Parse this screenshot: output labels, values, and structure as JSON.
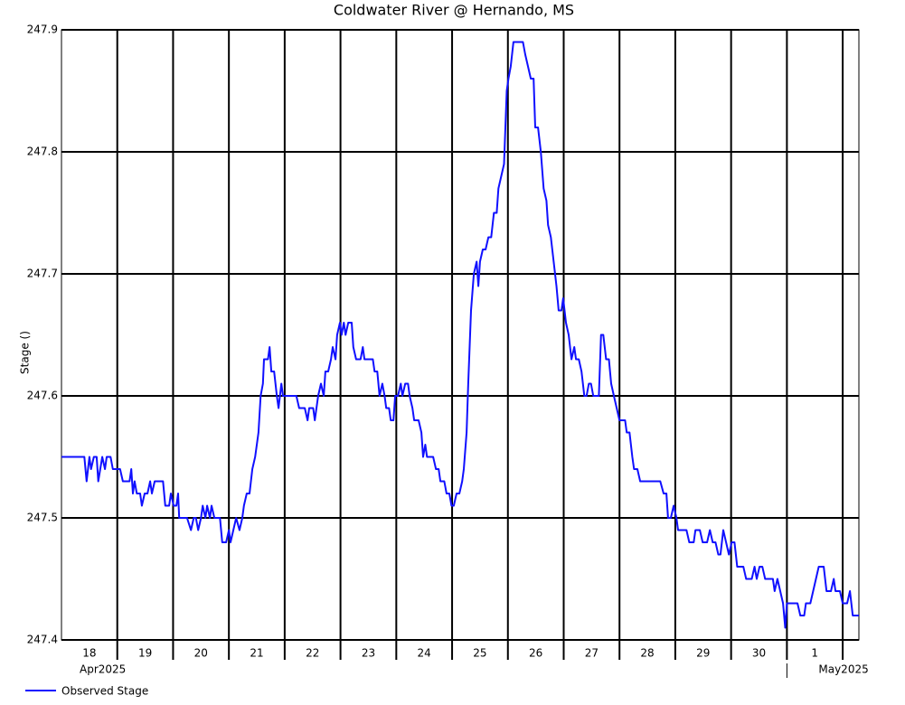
{
  "chart_data": {
    "type": "line",
    "title": "Coldwater River @ Hernando, MS",
    "ylabel": "Stage ()",
    "xlim": [
      0,
      14.29
    ],
    "ylim": [
      247.4,
      247.9
    ],
    "yticks": [
      247.4,
      247.5,
      247.6,
      247.7,
      247.8,
      247.9
    ],
    "xgrid": [
      1,
      2,
      3,
      4,
      5,
      6,
      7,
      8,
      9,
      10,
      11,
      12,
      13,
      14
    ],
    "xticks": [
      {
        "value": 0.5,
        "label": "18"
      },
      {
        "value": 1.5,
        "label": "19"
      },
      {
        "value": 2.5,
        "label": "20"
      },
      {
        "value": 3.5,
        "label": "21"
      },
      {
        "value": 4.5,
        "label": "22"
      },
      {
        "value": 5.5,
        "label": "23"
      },
      {
        "value": 6.5,
        "label": "24"
      },
      {
        "value": 7.5,
        "label": "25"
      },
      {
        "value": 8.5,
        "label": "26"
      },
      {
        "value": 9.5,
        "label": "27"
      },
      {
        "value": 10.5,
        "label": "28"
      },
      {
        "value": 11.5,
        "label": "29"
      },
      {
        "value": 12.5,
        "label": "30"
      },
      {
        "value": 13.5,
        "label": "1"
      }
    ],
    "month_labels": [
      {
        "value": 0,
        "label": "Apr2025"
      },
      {
        "value": 13,
        "label": "May2025"
      }
    ],
    "grid": true,
    "series": [
      {
        "name": "Observed Stage",
        "color": "#1010ff",
        "x": [
          0,
          0.41,
          0.45,
          0.5,
          0.53,
          0.58,
          0.63,
          0.66,
          0.73,
          0.78,
          0.81,
          0.88,
          0.92,
          1.05,
          1.1,
          1.22,
          1.25,
          1.28,
          1.31,
          1.35,
          1.41,
          1.44,
          1.49,
          1.54,
          1.59,
          1.62,
          1.67,
          1.82,
          1.86,
          1.93,
          1.96,
          2.01,
          2.06,
          2.09,
          2.11,
          2.25,
          2.32,
          2.37,
          2.41,
          2.45,
          2.5,
          2.53,
          2.58,
          2.61,
          2.66,
          2.69,
          2.74,
          2.84,
          2.88,
          2.95,
          3,
          3.03,
          3.08,
          3.13,
          3.19,
          3.24,
          3.27,
          3.32,
          3.37,
          3.42,
          3.47,
          3.53,
          3.57,
          3.61,
          3.63,
          3.7,
          3.73,
          3.76,
          3.81,
          3.86,
          3.89,
          3.94,
          3.97,
          4.21,
          4.26,
          4.36,
          4.41,
          4.44,
          4.51,
          4.54,
          4.6,
          4.65,
          4.7,
          4.73,
          4.78,
          4.83,
          4.86,
          4.91,
          4.94,
          4.99,
          5.02,
          5.06,
          5.09,
          5.14,
          5.2,
          5.23,
          5.28,
          5.36,
          5.4,
          5.43,
          5.58,
          5.61,
          5.66,
          5.7,
          5.75,
          5.79,
          5.82,
          5.87,
          5.9,
          5.95,
          5.98,
          6.03,
          6.08,
          6.11,
          6.16,
          6.21,
          6.24,
          6.29,
          6.32,
          6.4,
          6.45,
          6.48,
          6.52,
          6.55,
          6.66,
          6.71,
          6.76,
          6.79,
          6.86,
          6.9,
          6.95,
          6.99,
          7.03,
          7.08,
          7.13,
          7.18,
          7.21,
          7.26,
          7.29,
          7.34,
          7.39,
          7.44,
          7.47,
          7.5,
          7.55,
          7.6,
          7.65,
          7.7,
          7.75,
          7.8,
          7.83,
          7.88,
          7.93,
          7.98,
          8.01,
          8.05,
          8.1,
          8.27,
          8.31,
          8.36,
          8.41,
          8.46,
          8.49,
          8.54,
          8.59,
          8.64,
          8.69,
          8.72,
          8.77,
          8.82,
          8.87,
          8.91,
          8.96,
          8.99,
          9.04,
          9.09,
          9.14,
          9.19,
          9.22,
          9.27,
          9.32,
          9.37,
          9.41,
          9.45,
          9.49,
          9.53,
          9.63,
          9.67,
          9.71,
          9.76,
          9.81,
          9.85,
          9.9,
          9.95,
          10,
          10.1,
          10.13,
          10.18,
          10.23,
          10.26,
          10.32,
          10.37,
          10.73,
          10.79,
          10.84,
          10.87,
          10.92,
          10.97,
          11.02,
          11.05,
          11.2,
          11.25,
          11.33,
          11.36,
          11.44,
          11.49,
          11.57,
          11.62,
          11.67,
          11.72,
          11.77,
          11.81,
          11.86,
          11.91,
          11.96,
          12.01,
          12.06,
          12.11,
          12.22,
          12.27,
          12.37,
          12.42,
          12.46,
          12.51,
          12.56,
          12.61,
          12.75,
          12.78,
          12.83,
          12.88,
          12.93,
          12.97,
          13,
          13.19,
          13.24,
          13.31,
          13.34,
          13.42,
          13.47,
          13.52,
          13.57,
          13.66,
          13.71,
          13.79,
          13.84,
          13.87,
          13.95,
          14,
          14.08,
          14.13,
          14.18,
          14.29
        ],
        "values": [
          247.55,
          247.55,
          247.53,
          247.55,
          247.54,
          247.55,
          247.55,
          247.53,
          247.55,
          247.54,
          247.55,
          247.55,
          247.54,
          247.54,
          247.53,
          247.53,
          247.54,
          247.52,
          247.53,
          247.52,
          247.52,
          247.51,
          247.52,
          247.52,
          247.53,
          247.52,
          247.53,
          247.53,
          247.51,
          247.51,
          247.52,
          247.51,
          247.51,
          247.52,
          247.5,
          247.5,
          247.49,
          247.5,
          247.5,
          247.49,
          247.5,
          247.51,
          247.5,
          247.51,
          247.5,
          247.51,
          247.5,
          247.5,
          247.48,
          247.48,
          247.49,
          247.48,
          247.49,
          247.5,
          247.49,
          247.5,
          247.51,
          247.52,
          247.52,
          247.54,
          247.55,
          247.57,
          247.6,
          247.61,
          247.63,
          247.63,
          247.64,
          247.62,
          247.62,
          247.6,
          247.59,
          247.61,
          247.6,
          247.6,
          247.59,
          247.59,
          247.58,
          247.59,
          247.59,
          247.58,
          247.6,
          247.61,
          247.6,
          247.62,
          247.62,
          247.63,
          247.64,
          247.63,
          247.65,
          247.66,
          247.65,
          247.66,
          247.65,
          247.66,
          247.66,
          247.64,
          247.63,
          247.63,
          247.64,
          247.63,
          247.63,
          247.62,
          247.62,
          247.6,
          247.61,
          247.6,
          247.59,
          247.59,
          247.58,
          247.58,
          247.6,
          247.6,
          247.61,
          247.6,
          247.61,
          247.61,
          247.6,
          247.59,
          247.58,
          247.58,
          247.57,
          247.55,
          247.56,
          247.55,
          247.55,
          247.54,
          247.54,
          247.53,
          247.53,
          247.52,
          247.52,
          247.51,
          247.51,
          247.52,
          247.52,
          247.53,
          247.54,
          247.57,
          247.61,
          247.67,
          247.7,
          247.71,
          247.69,
          247.71,
          247.72,
          247.72,
          247.73,
          247.73,
          247.75,
          247.75,
          247.77,
          247.78,
          247.79,
          247.85,
          247.86,
          247.87,
          247.89,
          247.89,
          247.88,
          247.87,
          247.86,
          247.86,
          247.82,
          247.82,
          247.8,
          247.77,
          247.76,
          247.74,
          247.73,
          247.71,
          247.69,
          247.67,
          247.67,
          247.68,
          247.66,
          247.65,
          247.63,
          247.64,
          247.63,
          247.63,
          247.62,
          247.6,
          247.6,
          247.61,
          247.61,
          247.6,
          247.6,
          247.65,
          247.65,
          247.63,
          247.63,
          247.61,
          247.6,
          247.59,
          247.58,
          247.58,
          247.57,
          247.57,
          247.55,
          247.54,
          247.54,
          247.53,
          247.53,
          247.52,
          247.52,
          247.5,
          247.5,
          247.51,
          247.5,
          247.49,
          247.49,
          247.48,
          247.48,
          247.49,
          247.49,
          247.48,
          247.48,
          247.49,
          247.48,
          247.48,
          247.47,
          247.47,
          247.49,
          247.48,
          247.47,
          247.48,
          247.48,
          247.46,
          247.46,
          247.45,
          247.45,
          247.46,
          247.45,
          247.46,
          247.46,
          247.45,
          247.45,
          247.44,
          247.45,
          247.44,
          247.43,
          247.41,
          247.43,
          247.43,
          247.42,
          247.42,
          247.43,
          247.43,
          247.44,
          247.45,
          247.46,
          247.46,
          247.44,
          247.44,
          247.45,
          247.44,
          247.44,
          247.43,
          247.43,
          247.44,
          247.42,
          247.42
        ]
      }
    ]
  }
}
